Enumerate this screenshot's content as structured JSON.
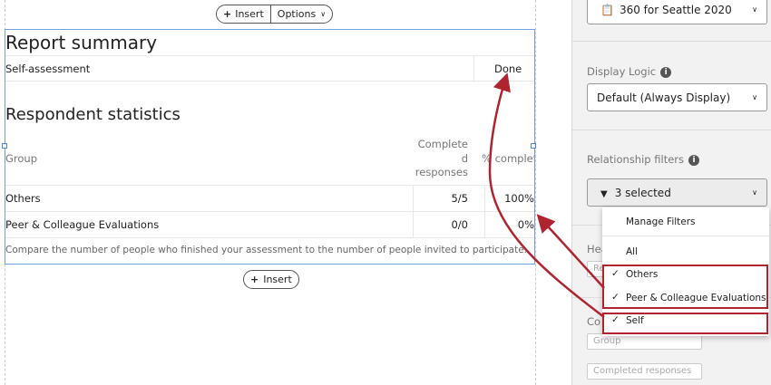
{
  "toolbar": {
    "insert_label": "Insert",
    "options_label": "Options",
    "bottom_insert_label": "Insert"
  },
  "report": {
    "title": "Report summary",
    "summary_row": {
      "label": "Self-assessment",
      "value": "Done"
    },
    "stats_title": "Respondent statistics",
    "columns": [
      "Group",
      "Complete\nd\nresponses",
      "% complete"
    ],
    "rows": [
      {
        "group": "Others",
        "completed": "5/5",
        "percent": "100%"
      },
      {
        "group": "Peer & Colleague Evaluations",
        "completed": "0/0",
        "percent": "0%"
      }
    ],
    "footnote": "Compare the number of people who finished your assessment to the number of people invited to participate."
  },
  "sidebar": {
    "project_select": "360 for Seattle 2020",
    "display_logic_label": "Display Logic",
    "display_logic_value": "Default (Always Display)",
    "relationship_filters_label": "Relationship filters",
    "relationship_filters_value": "3 selected",
    "header_label_partial": "Hea",
    "header_input_partial": "Re",
    "columns_label_partial": "Co",
    "group_placeholder": "Group",
    "completed_placeholder": "Completed responses"
  },
  "filter_menu": {
    "manage": "Manage Filters",
    "items": [
      {
        "label": "All",
        "checked": false
      },
      {
        "label": "Others",
        "checked": true
      },
      {
        "label": "Peer & Colleague Evaluations",
        "checked": true
      },
      {
        "label": "Self",
        "checked": true
      }
    ]
  },
  "colors": {
    "accent_border": "#6fa0e0",
    "annotation_red": "#b0242f"
  }
}
